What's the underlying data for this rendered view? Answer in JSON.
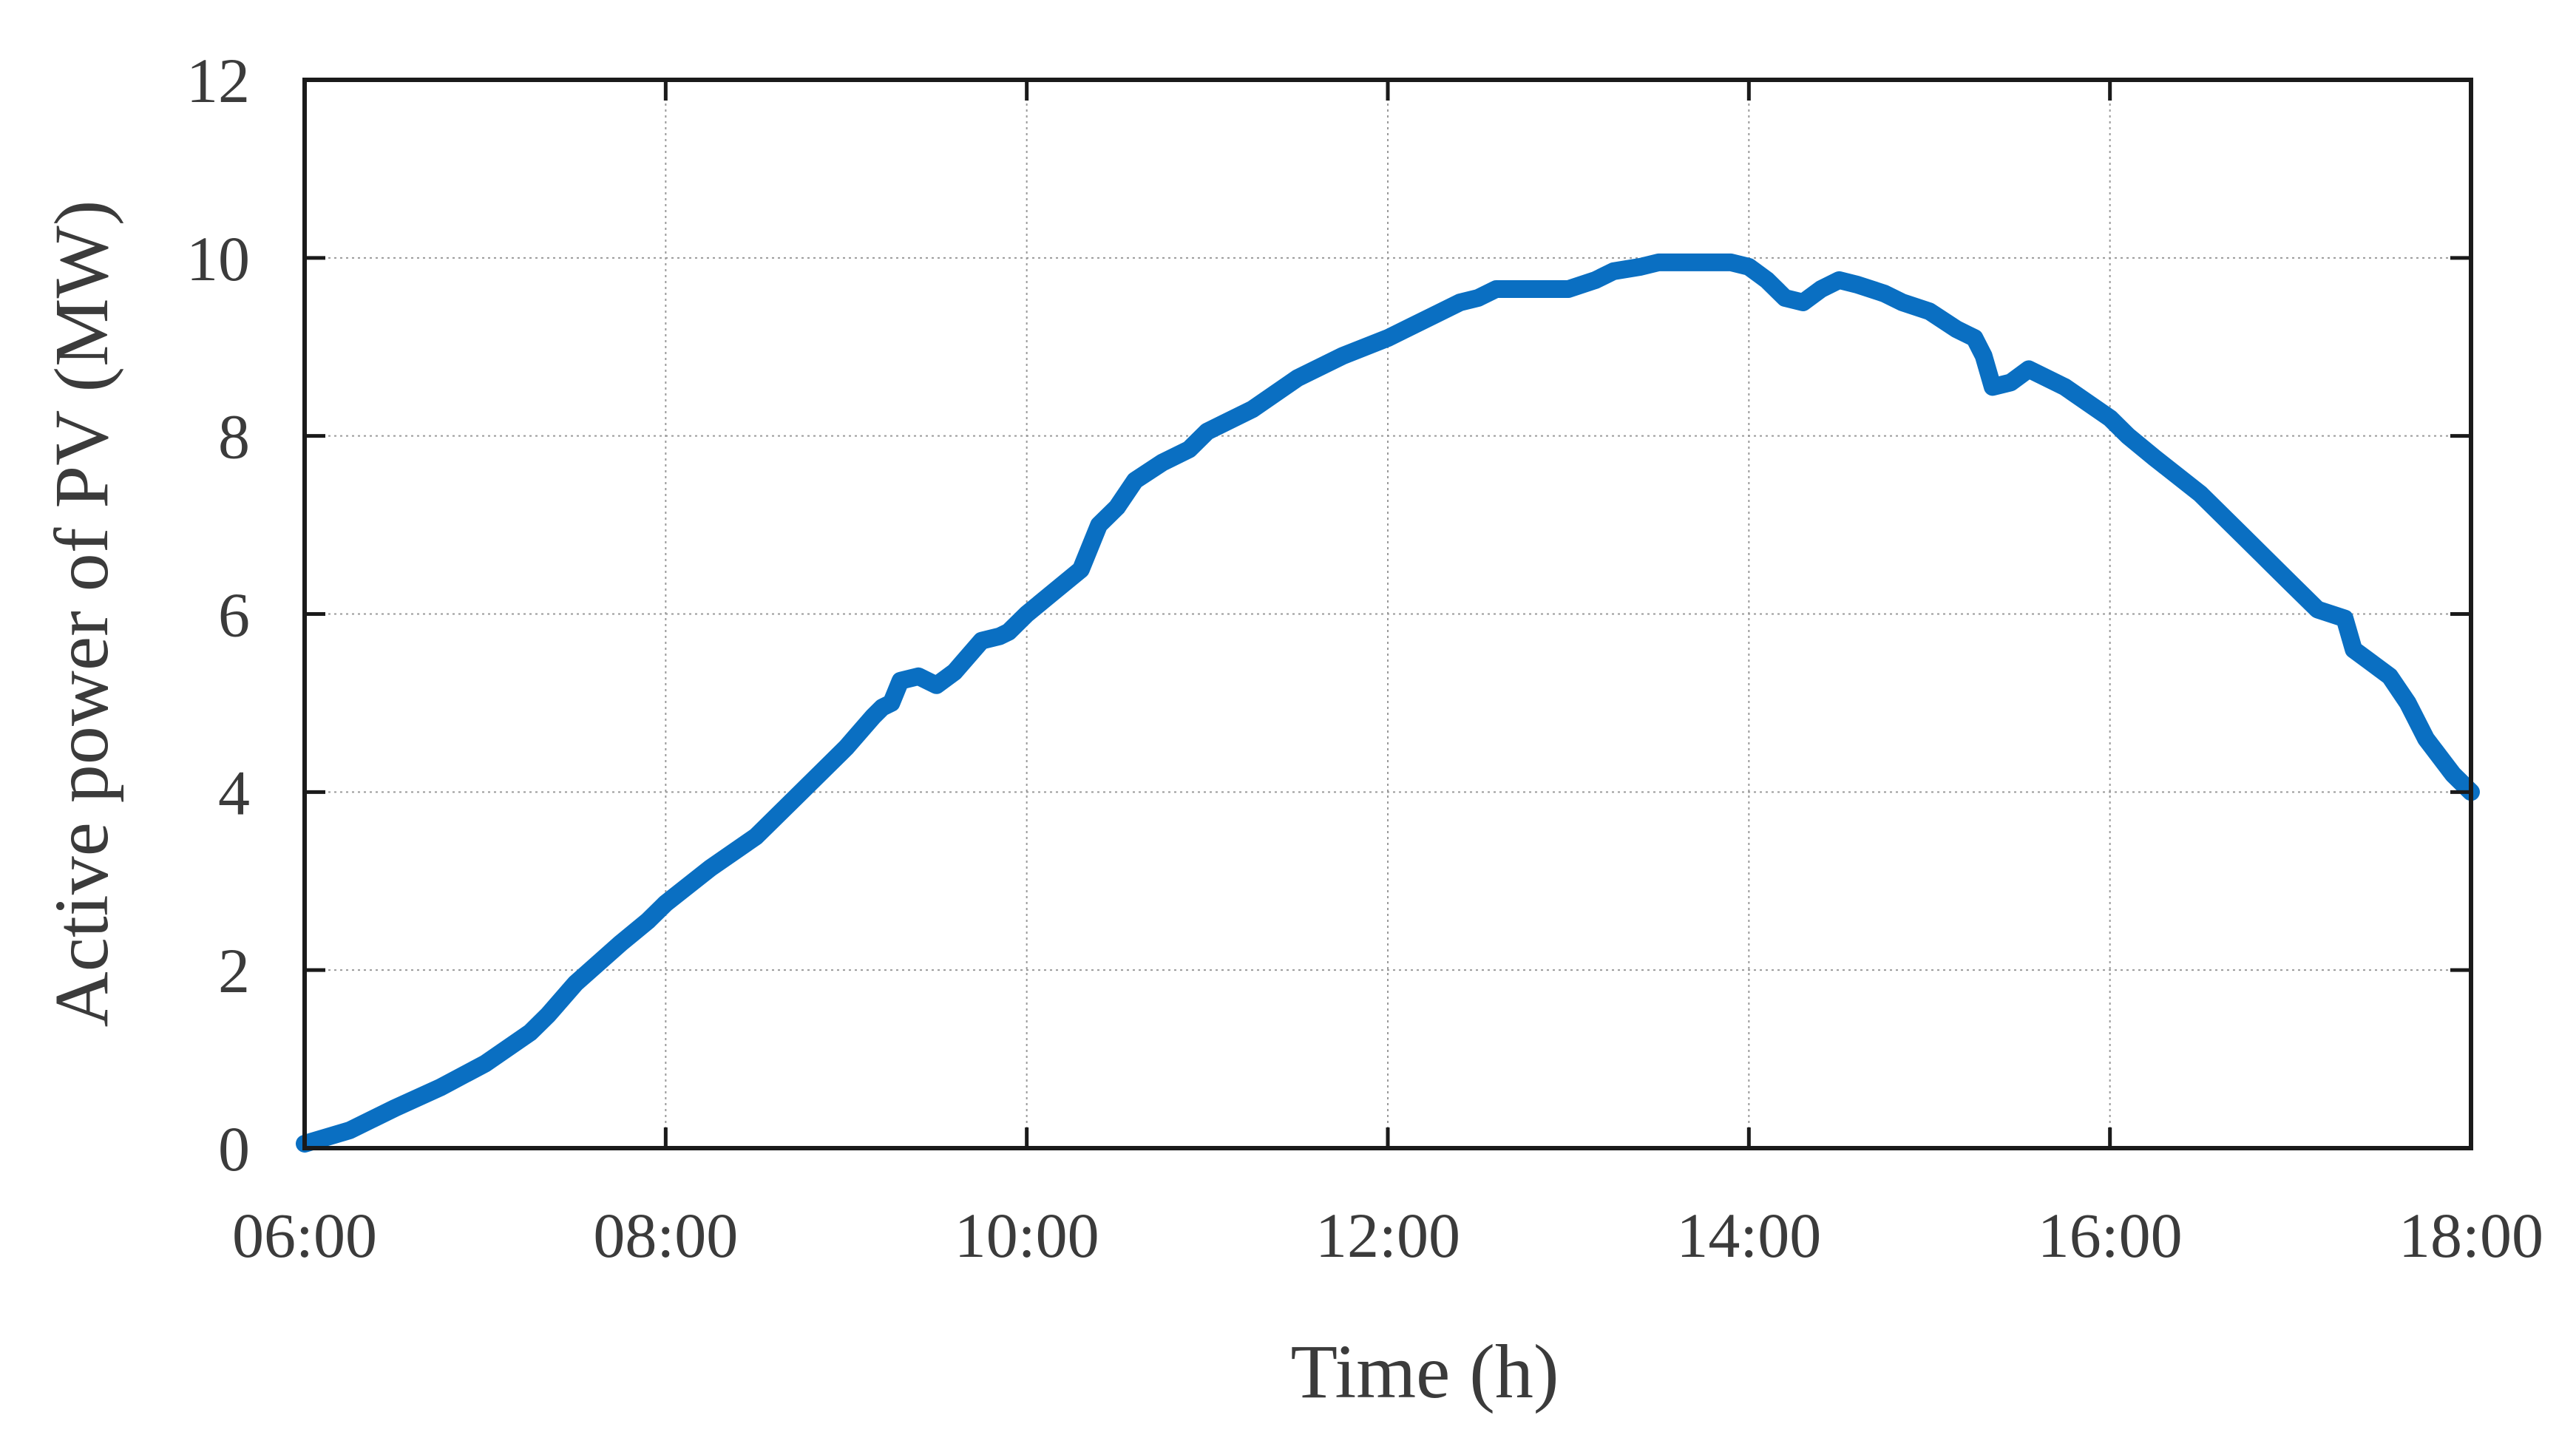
{
  "chart_data": {
    "type": "line",
    "title": "",
    "xlabel": "Time (h)",
    "ylabel": "Active power of PV (MW)",
    "x_unit": "hours",
    "xlim": [
      6,
      18
    ],
    "ylim": [
      0,
      12
    ],
    "x_ticks": [
      {
        "value": 6,
        "label": "06:00"
      },
      {
        "value": 8,
        "label": "08:00"
      },
      {
        "value": 10,
        "label": "10:00"
      },
      {
        "value": 12,
        "label": "12:00"
      },
      {
        "value": 14,
        "label": "14:00"
      },
      {
        "value": 16,
        "label": "16:00"
      },
      {
        "value": 18,
        "label": "18:00"
      }
    ],
    "y_ticks": [
      {
        "value": 0,
        "label": "0"
      },
      {
        "value": 2,
        "label": "2"
      },
      {
        "value": 4,
        "label": "4"
      },
      {
        "value": 6,
        "label": "6"
      },
      {
        "value": 8,
        "label": "8"
      },
      {
        "value": 10,
        "label": "10"
      },
      {
        "value": 12,
        "label": "12"
      }
    ],
    "grid": true,
    "legend": "none",
    "series": [
      {
        "color": "#0a6fc2",
        "points": [
          [
            6.0,
            0.05
          ],
          [
            6.25,
            0.2
          ],
          [
            6.5,
            0.45
          ],
          [
            6.75,
            0.68
          ],
          [
            7.0,
            0.95
          ],
          [
            7.25,
            1.3
          ],
          [
            7.35,
            1.5
          ],
          [
            7.5,
            1.85
          ],
          [
            7.75,
            2.3
          ],
          [
            7.9,
            2.55
          ],
          [
            8.0,
            2.75
          ],
          [
            8.25,
            3.15
          ],
          [
            8.5,
            3.5
          ],
          [
            8.75,
            4.0
          ],
          [
            9.0,
            4.5
          ],
          [
            9.15,
            4.85
          ],
          [
            9.2,
            4.95
          ],
          [
            9.25,
            5.0
          ],
          [
            9.3,
            5.25
          ],
          [
            9.4,
            5.3
          ],
          [
            9.5,
            5.2
          ],
          [
            9.6,
            5.35
          ],
          [
            9.75,
            5.7
          ],
          [
            9.85,
            5.75
          ],
          [
            9.9,
            5.8
          ],
          [
            10.0,
            6.0
          ],
          [
            10.15,
            6.25
          ],
          [
            10.3,
            6.5
          ],
          [
            10.4,
            7.0
          ],
          [
            10.5,
            7.2
          ],
          [
            10.6,
            7.5
          ],
          [
            10.75,
            7.7
          ],
          [
            10.9,
            7.85
          ],
          [
            11.0,
            8.05
          ],
          [
            11.25,
            8.3
          ],
          [
            11.5,
            8.65
          ],
          [
            11.75,
            8.9
          ],
          [
            12.0,
            9.1
          ],
          [
            12.25,
            9.35
          ],
          [
            12.4,
            9.5
          ],
          [
            12.5,
            9.55
          ],
          [
            12.6,
            9.65
          ],
          [
            12.75,
            9.65
          ],
          [
            13.0,
            9.65
          ],
          [
            13.15,
            9.75
          ],
          [
            13.25,
            9.85
          ],
          [
            13.4,
            9.9
          ],
          [
            13.5,
            9.95
          ],
          [
            13.6,
            9.95
          ],
          [
            13.75,
            9.95
          ],
          [
            13.9,
            9.95
          ],
          [
            14.0,
            9.9
          ],
          [
            14.1,
            9.75
          ],
          [
            14.2,
            9.55
          ],
          [
            14.3,
            9.5
          ],
          [
            14.4,
            9.65
          ],
          [
            14.5,
            9.75
          ],
          [
            14.6,
            9.7
          ],
          [
            14.75,
            9.6
          ],
          [
            14.85,
            9.5
          ],
          [
            15.0,
            9.4
          ],
          [
            15.15,
            9.2
          ],
          [
            15.25,
            9.1
          ],
          [
            15.3,
            8.9
          ],
          [
            15.35,
            8.55
          ],
          [
            15.45,
            8.6
          ],
          [
            15.55,
            8.75
          ],
          [
            15.75,
            8.55
          ],
          [
            16.0,
            8.2
          ],
          [
            16.1,
            8.0
          ],
          [
            16.25,
            7.75
          ],
          [
            16.5,
            7.35
          ],
          [
            16.75,
            6.85
          ],
          [
            16.9,
            6.55
          ],
          [
            17.0,
            6.35
          ],
          [
            17.15,
            6.05
          ],
          [
            17.3,
            5.95
          ],
          [
            17.35,
            5.6
          ],
          [
            17.45,
            5.45
          ],
          [
            17.55,
            5.3
          ],
          [
            17.65,
            5.0
          ],
          [
            17.75,
            4.6
          ],
          [
            17.9,
            4.2
          ],
          [
            18.0,
            4.0
          ]
        ]
      }
    ]
  }
}
